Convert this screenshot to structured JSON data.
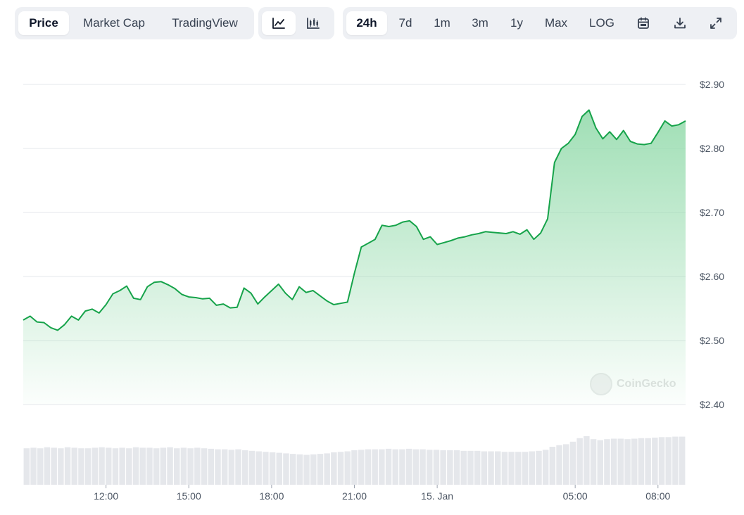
{
  "toolbar": {
    "view_tabs": [
      "Price",
      "Market Cap",
      "TradingView"
    ],
    "view_active": "Price",
    "chart_type_icons": [
      "line-chart-icon",
      "candlestick-chart-icon"
    ],
    "range_tabs": [
      "24h",
      "7d",
      "1m",
      "3m",
      "1y",
      "Max",
      "LOG"
    ],
    "range_active": "24h",
    "action_icons": [
      "calendar-icon",
      "download-icon",
      "expand-icon"
    ]
  },
  "watermark": "CoinGecko",
  "colors": {
    "line": "#16a34a",
    "area_top": "#8fd9a8",
    "volume": "#e5e7eb",
    "grid": "#e5e7eb"
  },
  "chart_data": {
    "type": "area",
    "xlabel": "",
    "ylabel": "",
    "x_ticks": [
      "12:00",
      "15:00",
      "18:00",
      "21:00",
      "15. Jan",
      "05:00",
      "08:00"
    ],
    "y_ticks": [
      "$2.90",
      "$2.80",
      "$2.70",
      "$2.60",
      "$2.50",
      "$2.40"
    ],
    "ylim": [
      2.4,
      2.9
    ],
    "x_start": "14 Jan 09:00",
    "x_end": "15 Jan 09:00",
    "grid": true,
    "series": [
      {
        "values": [
          2.532,
          2.538,
          2.529,
          2.528,
          2.52,
          2.516,
          2.525,
          2.538,
          2.532,
          2.546,
          2.549,
          2.543,
          2.556,
          2.573,
          2.578,
          2.585,
          2.566,
          2.564,
          2.584,
          2.591,
          2.592,
          2.587,
          2.581,
          2.572,
          2.568,
          2.567,
          2.565,
          2.566,
          2.555,
          2.557,
          2.551,
          2.552,
          2.582,
          2.574,
          2.557,
          2.568,
          2.578,
          2.588,
          2.574,
          2.564,
          2.584,
          2.575,
          2.578,
          2.57,
          2.562,
          2.556,
          2.558,
          2.56,
          2.605,
          2.646,
          2.652,
          2.658,
          2.68,
          2.678,
          2.68,
          2.685,
          2.687,
          2.678,
          2.658,
          2.662,
          2.65,
          2.653,
          2.656,
          2.66,
          2.662,
          2.665,
          2.667,
          2.67,
          2.669,
          2.668,
          2.667,
          2.67,
          2.666,
          2.673,
          2.658,
          2.668,
          2.69,
          2.778,
          2.8,
          2.808,
          2.822,
          2.85,
          2.86,
          2.832,
          2.815,
          2.826,
          2.814,
          2.828,
          2.811,
          2.807,
          2.806,
          2.808,
          2.825,
          2.843,
          2.835,
          2.837,
          2.843
        ]
      }
    ],
    "volume": {
      "values": [
        0.72,
        0.73,
        0.72,
        0.74,
        0.73,
        0.72,
        0.74,
        0.73,
        0.72,
        0.72,
        0.73,
        0.74,
        0.73,
        0.72,
        0.73,
        0.72,
        0.74,
        0.73,
        0.73,
        0.72,
        0.73,
        0.74,
        0.72,
        0.73,
        0.72,
        0.73,
        0.72,
        0.71,
        0.7,
        0.7,
        0.69,
        0.7,
        0.68,
        0.67,
        0.66,
        0.65,
        0.64,
        0.63,
        0.62,
        0.61,
        0.6,
        0.59,
        0.6,
        0.61,
        0.62,
        0.64,
        0.65,
        0.66,
        0.68,
        0.69,
        0.7,
        0.7,
        0.7,
        0.71,
        0.7,
        0.7,
        0.71,
        0.7,
        0.7,
        0.69,
        0.69,
        0.68,
        0.68,
        0.68,
        0.67,
        0.67,
        0.67,
        0.66,
        0.66,
        0.66,
        0.65,
        0.65,
        0.65,
        0.65,
        0.66,
        0.67,
        0.69,
        0.75,
        0.78,
        0.8,
        0.85,
        0.92,
        0.96,
        0.9,
        0.88,
        0.9,
        0.91,
        0.91,
        0.9,
        0.91,
        0.92,
        0.92,
        0.93,
        0.94,
        0.94,
        0.95,
        0.95
      ],
      "ylim": [
        0,
        1
      ]
    }
  }
}
